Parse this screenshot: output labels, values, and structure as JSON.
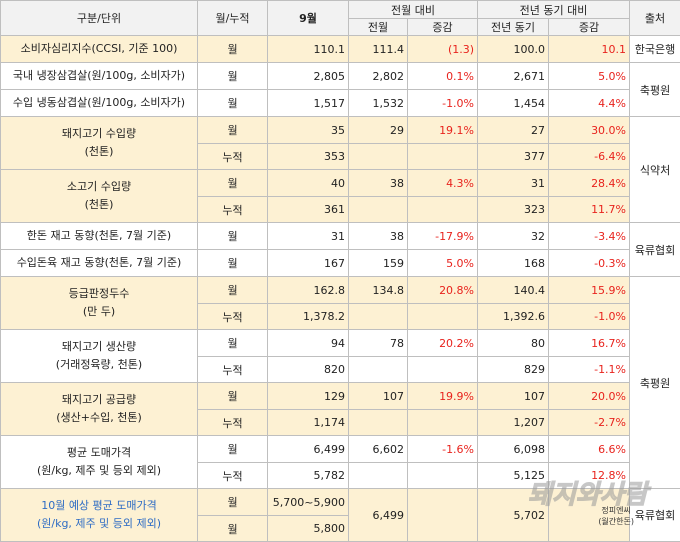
{
  "headers": {
    "category": "구분/단위",
    "period": "월/누적",
    "september": "9월",
    "mom_group": "전월 대비",
    "mom_prev": "전월",
    "mom_change": "증감",
    "yoy_group": "전년 동기 대비",
    "yoy_prev": "전년 동기",
    "yoy_change": "증감",
    "source": "출처"
  },
  "rows": {
    "ccsi": {
      "label": "소비자심리지수(CCSI, 기준 100)",
      "period": "월",
      "sep": "110.1",
      "mom_prev": "111.4",
      "mom_chg": "(1.3)",
      "yoy_prev": "100.0",
      "yoy_chg": "10.1",
      "source": "한국은행"
    },
    "dom_chilled": {
      "label": "국내 냉장삼겹살(원/100g, 소비자가)",
      "period": "월",
      "sep": "2,805",
      "mom_prev": "2,802",
      "mom_chg": "0.1%",
      "yoy_prev": "2,671",
      "yoy_chg": "5.0%"
    },
    "imp_frozen": {
      "label": "수입 냉동삼겹살(원/100g, 소비자가)",
      "period": "월",
      "sep": "1,517",
      "mom_prev": "1,532",
      "mom_chg": "-1.0%",
      "yoy_prev": "1,454",
      "yoy_chg": "4.4%"
    },
    "pork_import": {
      "label1": "돼지고기 수입량",
      "label2": "(천톤)",
      "r1": {
        "period": "월",
        "sep": "35",
        "mom_prev": "29",
        "mom_chg": "19.1%",
        "yoy_prev": "27",
        "yoy_chg": "30.0%"
      },
      "r2": {
        "period": "누적",
        "sep": "353",
        "yoy_prev": "377",
        "yoy_chg": "-6.4%"
      }
    },
    "beef_import": {
      "label1": "소고기 수입량",
      "label2": "(천톤)",
      "r1": {
        "period": "월",
        "sep": "40",
        "mom_prev": "38",
        "mom_chg": "4.3%",
        "yoy_prev": "31",
        "yoy_chg": "28.4%"
      },
      "r2": {
        "period": "누적",
        "sep": "361",
        "yoy_prev": "323",
        "yoy_chg": "11.7%"
      }
    },
    "hanwoo_stock": {
      "label": "한돈 재고 동향(천톤, 7월 기준)",
      "period": "월",
      "sep": "31",
      "mom_prev": "38",
      "mom_chg": "-17.9%",
      "yoy_prev": "32",
      "yoy_chg": "-3.4%"
    },
    "imp_stock": {
      "label": "수입돈육 재고 동향(천톤, 7월 기준)",
      "period": "월",
      "sep": "167",
      "mom_prev": "159",
      "mom_chg": "5.0%",
      "yoy_prev": "168",
      "yoy_chg": "-0.3%"
    },
    "grading": {
      "label1": "등급판정두수",
      "label2": "(만 두)",
      "r1": {
        "period": "월",
        "sep": "162.8",
        "mom_prev": "134.8",
        "mom_chg": "20.8%",
        "yoy_prev": "140.4",
        "yoy_chg": "15.9%"
      },
      "r2": {
        "period": "누적",
        "sep": "1,378.2",
        "yoy_prev": "1,392.6",
        "yoy_chg": "-1.0%"
      }
    },
    "production": {
      "label1": "돼지고기 생산량",
      "label2": "(거래정육량, 천톤)",
      "r1": {
        "period": "월",
        "sep": "94",
        "mom_prev": "78",
        "mom_chg": "20.2%",
        "yoy_prev": "80",
        "yoy_chg": "16.7%"
      },
      "r2": {
        "period": "누적",
        "sep": "820",
        "yoy_prev": "829",
        "yoy_chg": "-1.1%"
      }
    },
    "supply": {
      "label1": "돼지고기 공급량",
      "label2": "(생산+수입, 천톤)",
      "r1": {
        "period": "월",
        "sep": "129",
        "mom_prev": "107",
        "mom_chg": "19.9%",
        "yoy_prev": "107",
        "yoy_chg": "20.0%"
      },
      "r2": {
        "period": "누적",
        "sep": "1,174",
        "yoy_prev": "1,207",
        "yoy_chg": "-2.7%"
      }
    },
    "wholesale": {
      "label1": "평균 도매가격",
      "label2": "(원/kg, 제주 및 등외 제외)",
      "r1": {
        "period": "월",
        "sep": "6,499",
        "mom_prev": "6,602",
        "mom_chg": "-1.6%",
        "yoy_prev": "6,098",
        "yoy_chg": "6.6%"
      },
      "r2": {
        "period": "누적",
        "sep": "5,782",
        "yoy_prev": "5,125",
        "yoy_chg": "12.8%"
      }
    },
    "forecast": {
      "label1": "10월 예상 평균 도매가격",
      "label2": "(원/kg, 제주 및 등외 제외)",
      "r1": {
        "period": "월",
        "sep": "5,700~5,900"
      },
      "r2": {
        "period": "월",
        "sep": "5,800"
      },
      "mom_prev": "6,499",
      "yoy_prev": "5,702"
    }
  },
  "sources": {
    "chuk1": "축평원",
    "food": "식약처",
    "meat": "육류협회",
    "chuk2": "축평원",
    "meat2": "육류협회"
  },
  "watermark": {
    "text": "돼지와사람",
    "tag1": "정피엔씨",
    "tag2": "(월간한돈)"
  }
}
